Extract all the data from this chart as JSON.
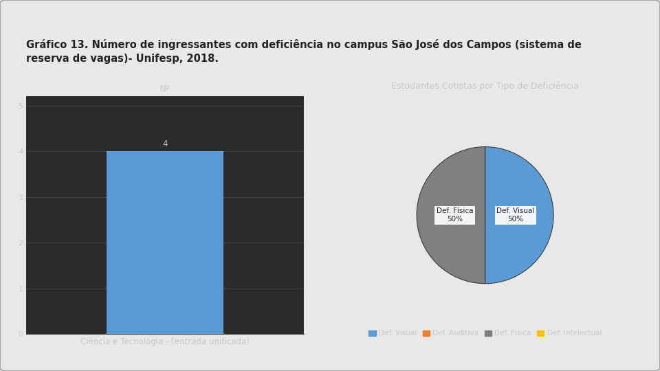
{
  "title_line1": "Gráfico 13. Número de ingressantes com deficiência no campus São José dos Campos (sistema de",
  "title_line2": "reserva de vagas)- Unifesp, 2018.",
  "title_fontsize": 10.5,
  "background_color": "#e8e8e8",
  "chart_bg": "#2b2b2b",
  "bar_value": 4,
  "bar_color": "#5b9bd5",
  "bar_xlabel": "Ciência e Tecnologia - (entrada unificada)",
  "bar_ylabel": "Nº",
  "bar_yticks": [
    0,
    1,
    2,
    3,
    4,
    5
  ],
  "bar_ylim": [
    0,
    5.2
  ],
  "text_color": "#c8c8c8",
  "grid_color": "#4a4a4a",
  "pie_title": "Estudantes Cotistas por Tipo de Deficiência",
  "pie_title_fontsize": 9,
  "pie_labels": [
    "Def. Visual",
    "Def. Auditiva",
    "Def. Física",
    "Def. Intelectual"
  ],
  "pie_colors": [
    "#5b9bd5",
    "#ed7d31",
    "#808080",
    "#ffc000"
  ],
  "pie_label_color": "#222222",
  "legend_fontsize": 7.5,
  "axis_fontsize": 8.5,
  "tick_fontsize": 8,
  "value_label_fontsize": 8.5
}
